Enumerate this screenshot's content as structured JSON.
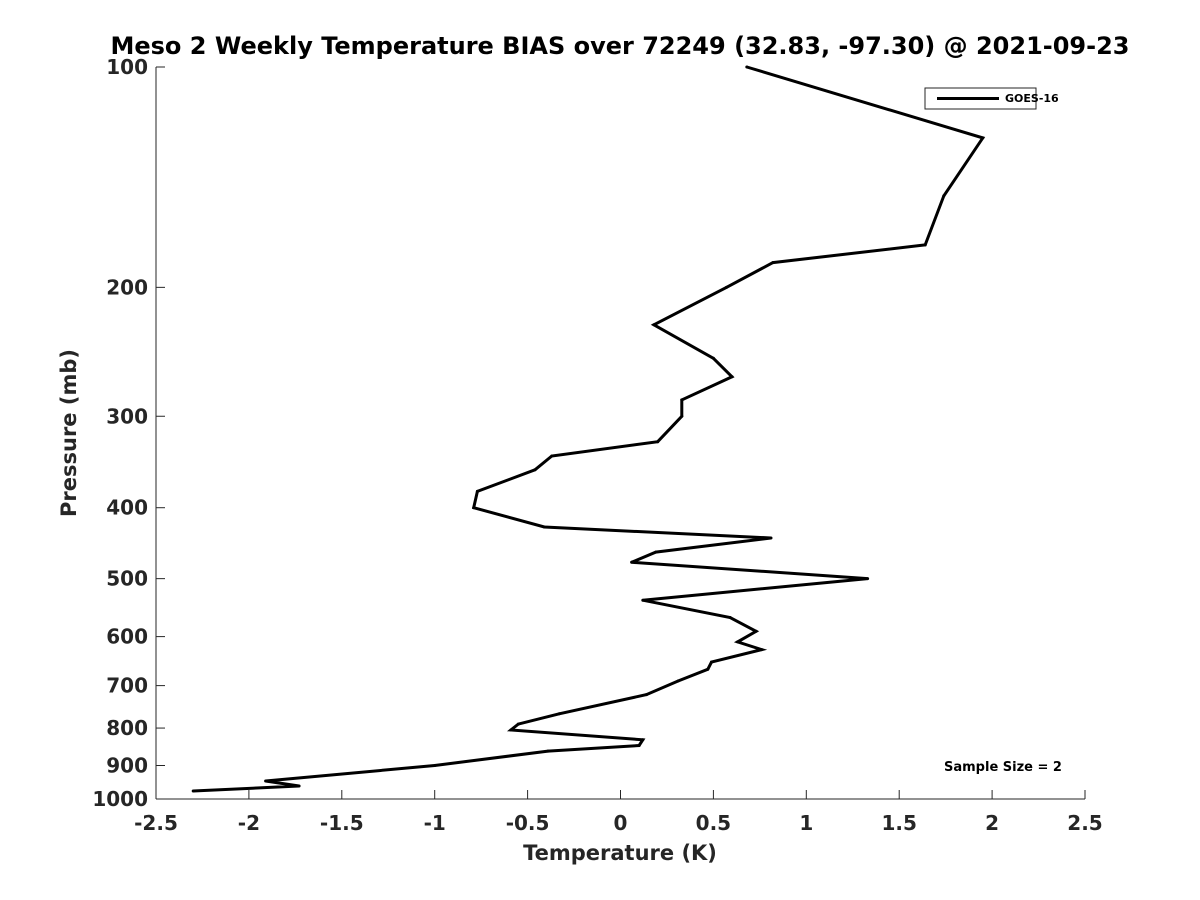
{
  "chart_data": {
    "type": "line",
    "title": "Meso 2 Weekly Temperature BIAS over 72249 (32.83, -97.30) @ 2021-09-23",
    "xlabel": "Temperature (K)",
    "ylabel": "Pressure (mb)",
    "xlim": [
      -2.5,
      2.5
    ],
    "ylim": [
      1000,
      100
    ],
    "y_scale": "log",
    "y_reversed": true,
    "grid": false,
    "x_ticks": [
      -2.5,
      -2,
      -1.5,
      -1,
      -0.5,
      0,
      0.5,
      1,
      1.5,
      2,
      2.5
    ],
    "x_tick_labels": [
      "-2.5",
      "-2",
      "-1.5",
      "-1",
      "-0.5",
      "0",
      "0.5",
      "1",
      "1.5",
      "2",
      "2.5"
    ],
    "y_ticks": [
      100,
      200,
      300,
      400,
      500,
      600,
      700,
      800,
      900,
      1000
    ],
    "y_tick_labels": [
      "100",
      "200",
      "300",
      "400",
      "500",
      "600",
      "700",
      "800",
      "900",
      "1000"
    ],
    "legend": {
      "position": "top-right",
      "entries": [
        "GOES-16"
      ]
    },
    "annotation": "Sample Size = 2",
    "series": [
      {
        "name": "GOES-16",
        "color": "#000000",
        "points": [
          {
            "x": 0.68,
            "p": 100
          },
          {
            "x": 1.95,
            "p": 125
          },
          {
            "x": 1.74,
            "p": 150
          },
          {
            "x": 1.64,
            "p": 175
          },
          {
            "x": 0.82,
            "p": 185
          },
          {
            "x": 0.57,
            "p": 200
          },
          {
            "x": 0.18,
            "p": 225
          },
          {
            "x": 0.5,
            "p": 250
          },
          {
            "x": 0.6,
            "p": 265
          },
          {
            "x": 0.33,
            "p": 285
          },
          {
            "x": 0.33,
            "p": 300
          },
          {
            "x": 0.2,
            "p": 325
          },
          {
            "x": -0.37,
            "p": 340
          },
          {
            "x": -0.46,
            "p": 355
          },
          {
            "x": -0.77,
            "p": 380
          },
          {
            "x": -0.79,
            "p": 400
          },
          {
            "x": -0.41,
            "p": 425
          },
          {
            "x": 0.81,
            "p": 440
          },
          {
            "x": 0.19,
            "p": 460
          },
          {
            "x": 0.06,
            "p": 475
          },
          {
            "x": 1.33,
            "p": 500
          },
          {
            "x": 0.12,
            "p": 535
          },
          {
            "x": 0.59,
            "p": 565
          },
          {
            "x": 0.73,
            "p": 590
          },
          {
            "x": 0.63,
            "p": 610
          },
          {
            "x": 0.76,
            "p": 625
          },
          {
            "x": 0.49,
            "p": 650
          },
          {
            "x": 0.47,
            "p": 665
          },
          {
            "x": 0.31,
            "p": 690
          },
          {
            "x": 0.14,
            "p": 720
          },
          {
            "x": -0.33,
            "p": 765
          },
          {
            "x": -0.55,
            "p": 790
          },
          {
            "x": -0.59,
            "p": 805
          },
          {
            "x": 0.12,
            "p": 830
          },
          {
            "x": 0.1,
            "p": 845
          },
          {
            "x": -0.39,
            "p": 860
          },
          {
            "x": -1.0,
            "p": 900
          },
          {
            "x": -1.91,
            "p": 945
          },
          {
            "x": -1.73,
            "p": 960
          },
          {
            "x": -2.3,
            "p": 975
          }
        ]
      }
    ]
  }
}
